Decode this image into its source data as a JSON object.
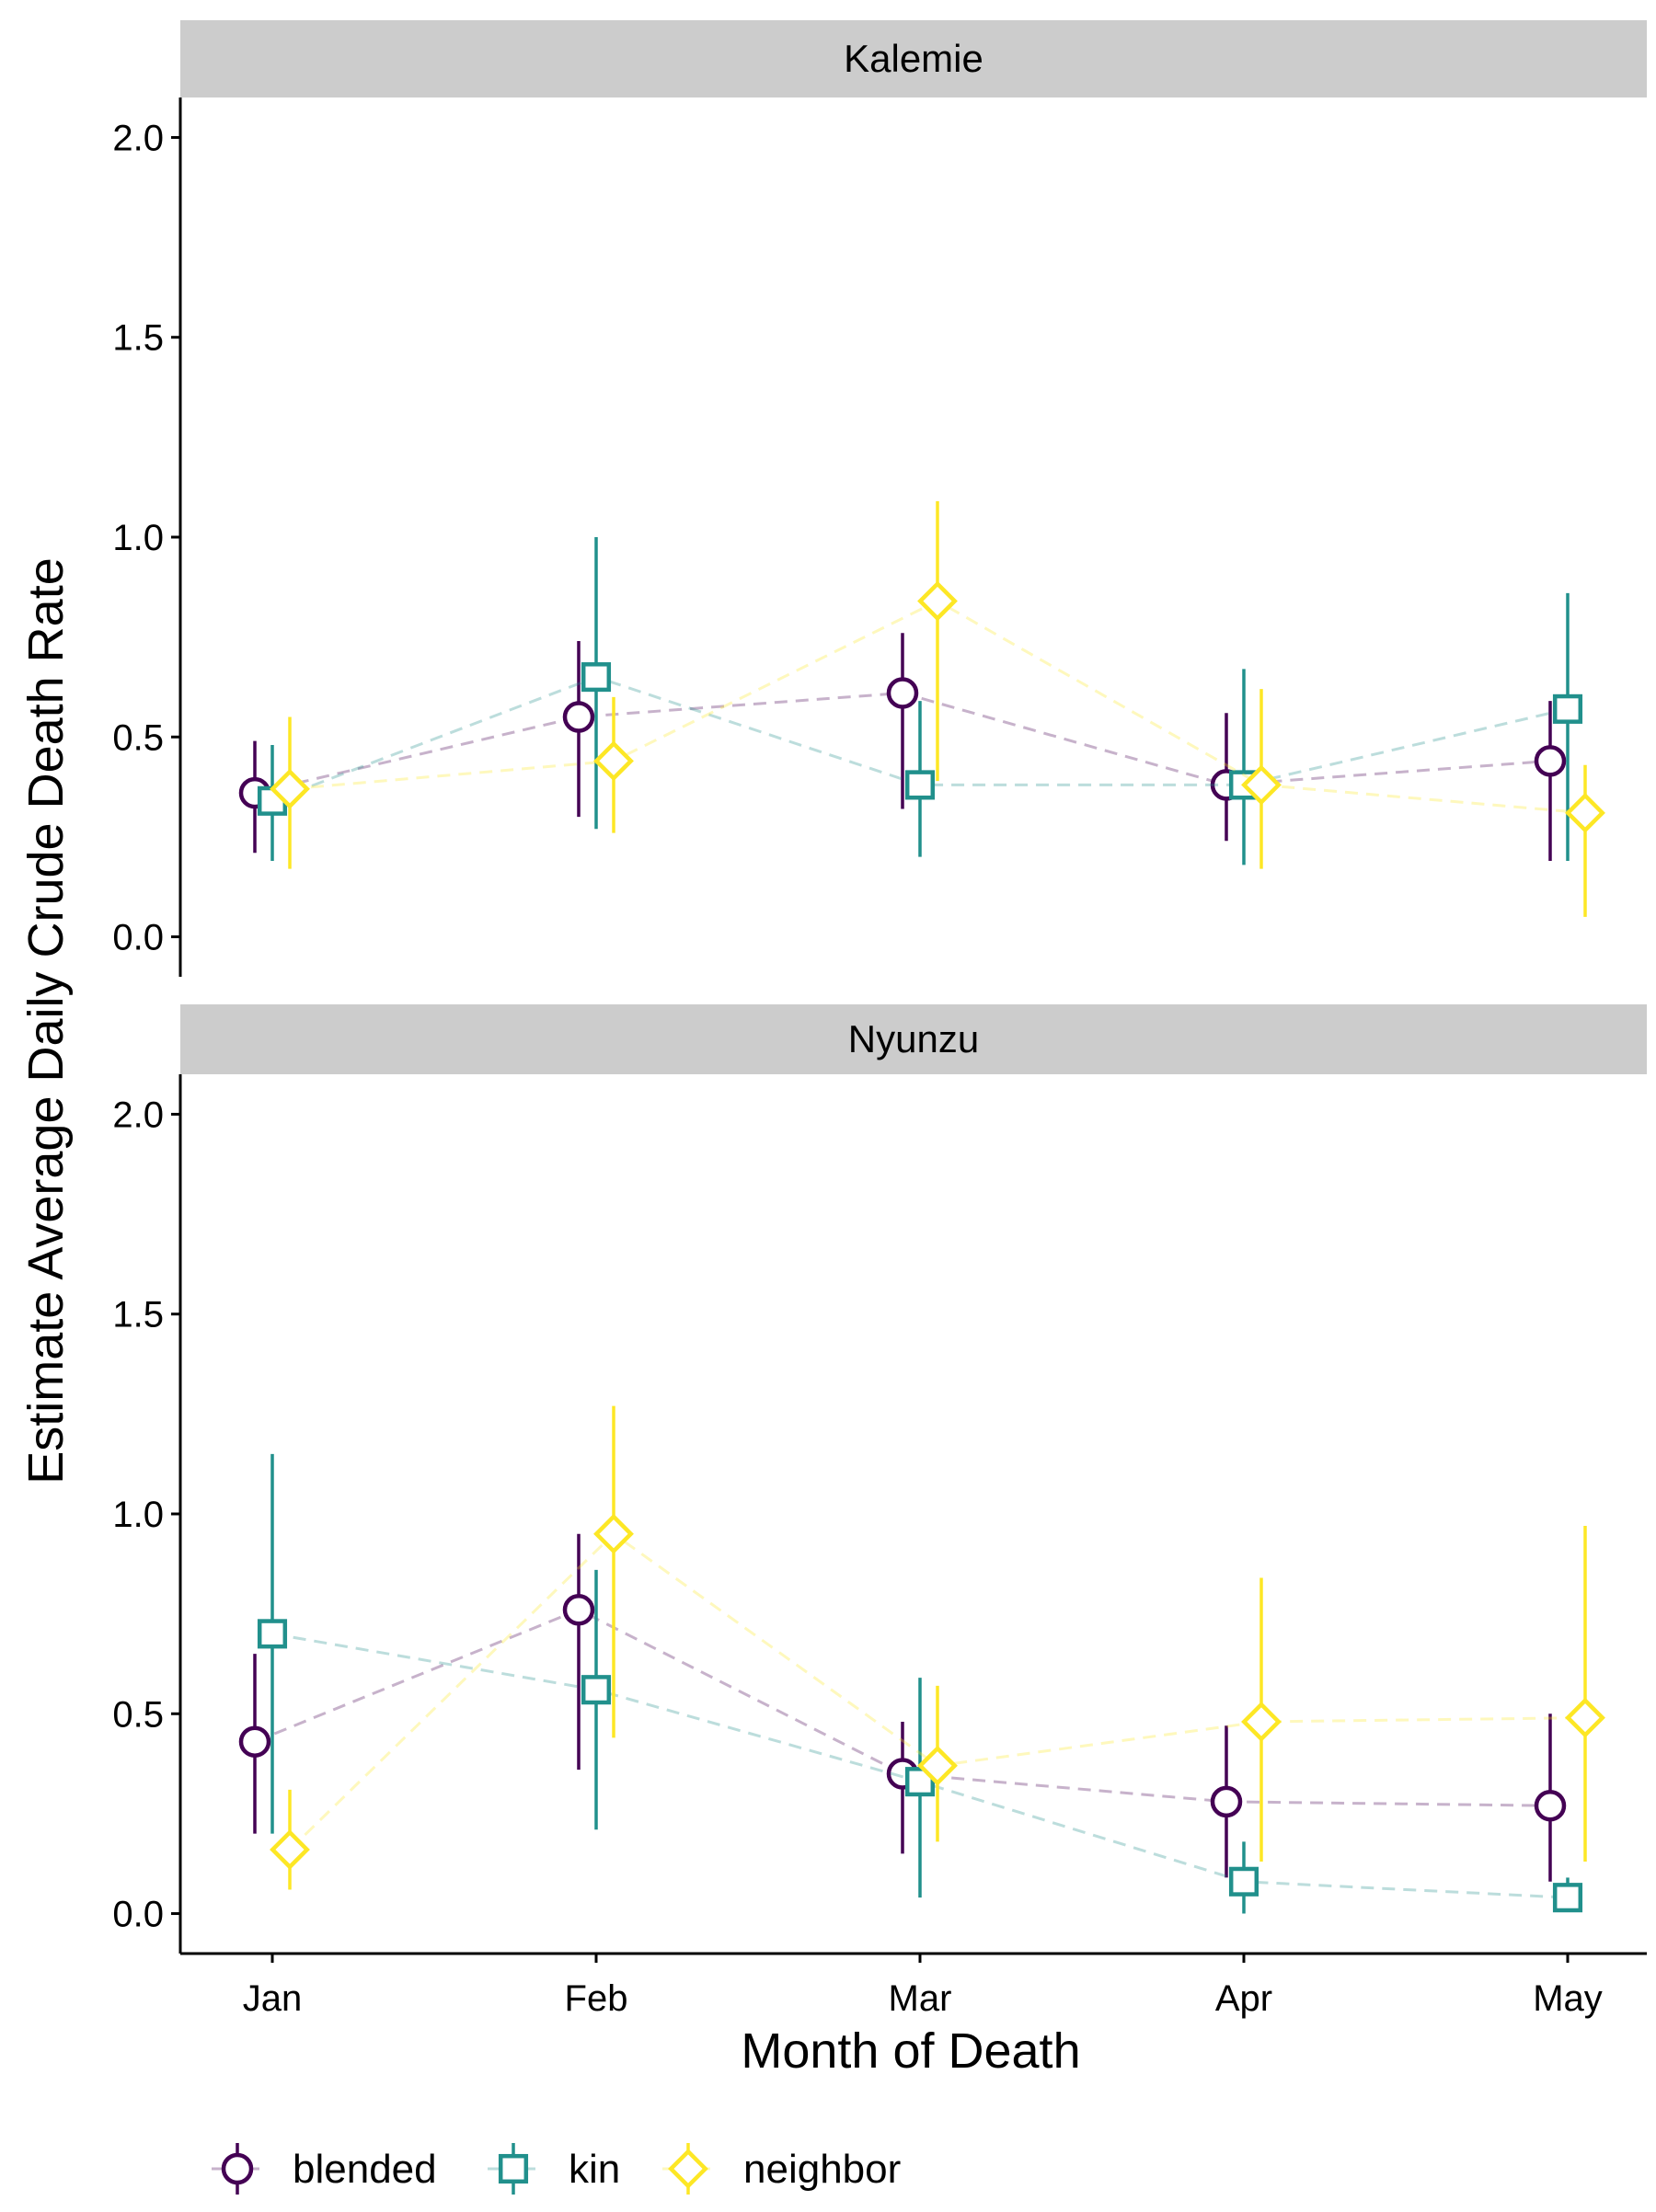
{
  "chart_data": {
    "type": "scatter",
    "xlabel": "Month of Death",
    "ylabel": "Estimate Average Daily Crude Death Rate",
    "categories": [
      "Jan",
      "Feb",
      "Mar",
      "Apr",
      "May"
    ],
    "ylim": [
      -0.1,
      2.1
    ],
    "yticks": [
      0.0,
      0.5,
      1.0,
      1.5,
      2.0
    ],
    "ytick_labels": [
      "0.0",
      "0.5",
      "1.0",
      "1.5",
      "2.0"
    ],
    "grid": false,
    "legend_position": "bottom-left",
    "series_styles": [
      {
        "name": "blended",
        "color": "#440154",
        "marker": "circle"
      },
      {
        "name": "kin",
        "color": "#21908C",
        "marker": "square"
      },
      {
        "name": "neighbor",
        "color": "#FDE725",
        "marker": "diamond"
      }
    ],
    "facets": [
      {
        "label": "Kalemie",
        "series": [
          {
            "name": "blended",
            "values": [
              0.36,
              0.55,
              0.61,
              0.38,
              0.44
            ],
            "lower": [
              0.21,
              0.3,
              0.32,
              0.24,
              0.19
            ],
            "upper": [
              0.49,
              0.74,
              0.76,
              0.56,
              0.59
            ]
          },
          {
            "name": "kin",
            "values": [
              0.34,
              0.65,
              0.38,
              0.38,
              0.57
            ],
            "lower": [
              0.19,
              0.27,
              0.2,
              0.18,
              0.19
            ],
            "upper": [
              0.48,
              1.0,
              0.59,
              0.67,
              0.86
            ]
          },
          {
            "name": "neighbor",
            "values": [
              0.37,
              0.44,
              0.84,
              0.38,
              0.31
            ],
            "lower": [
              0.17,
              0.26,
              0.39,
              0.17,
              0.05
            ],
            "upper": [
              0.55,
              0.6,
              1.09,
              0.62,
              0.43
            ]
          }
        ]
      },
      {
        "label": "Nyunzu",
        "series": [
          {
            "name": "blended",
            "values": [
              0.43,
              0.76,
              0.35,
              0.28,
              0.27
            ],
            "lower": [
              0.2,
              0.36,
              0.15,
              0.09,
              0.08
            ],
            "upper": [
              0.65,
              0.95,
              0.48,
              0.47,
              0.5
            ]
          },
          {
            "name": "kin",
            "values": [
              0.7,
              0.56,
              0.33,
              0.08,
              0.04
            ],
            "lower": [
              0.2,
              0.21,
              0.04,
              0.0,
              0.01
            ],
            "upper": [
              1.15,
              0.86,
              0.59,
              0.18,
              0.09
            ]
          },
          {
            "name": "neighbor",
            "values": [
              0.16,
              0.95,
              0.37,
              0.48,
              0.49
            ],
            "lower": [
              0.06,
              0.44,
              0.18,
              0.13,
              0.13
            ],
            "upper": [
              0.31,
              1.27,
              0.57,
              0.84,
              0.97
            ]
          }
        ]
      }
    ]
  }
}
